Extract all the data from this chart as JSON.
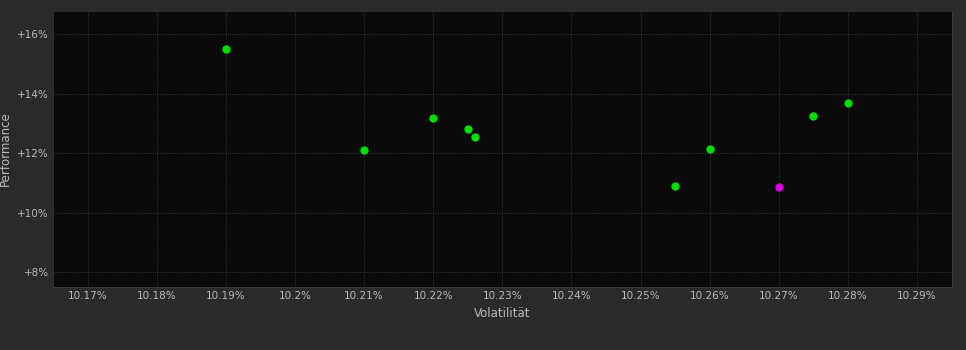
{
  "green_points": [
    [
      10.19,
      15.5
    ],
    [
      10.21,
      12.1
    ],
    [
      10.22,
      13.2
    ],
    [
      10.225,
      12.8
    ],
    [
      10.226,
      12.55
    ],
    [
      10.255,
      10.9
    ],
    [
      10.26,
      12.15
    ],
    [
      10.275,
      13.25
    ],
    [
      10.28,
      13.7
    ]
  ],
  "magenta_points": [
    [
      10.27,
      10.85
    ]
  ],
  "xlim": [
    10.165,
    10.295
  ],
  "ylim": [
    7.5,
    16.8
  ],
  "xticks": [
    10.17,
    10.18,
    10.19,
    10.2,
    10.21,
    10.22,
    10.23,
    10.24,
    10.25,
    10.26,
    10.27,
    10.28,
    10.29
  ],
  "xtick_labels": [
    "10.17%",
    "10.18%",
    "10.19%",
    "10.2%",
    "10.21%",
    "10.22%",
    "10.23%",
    "10.24%",
    "10.25%",
    "10.26%",
    "10.27%",
    "10.28%",
    "10.29%"
  ],
  "yticks": [
    8,
    10,
    12,
    14,
    16
  ],
  "xlabel": "Volatilität",
  "ylabel": "Performance",
  "bg_color": "#2a2a2a",
  "plot_bg_color": "#0a0a0a",
  "grid_color": "#404040",
  "green_color": "#00dd00",
  "magenta_color": "#dd00dd",
  "text_color": "#bbbbbb",
  "dot_size": 25
}
